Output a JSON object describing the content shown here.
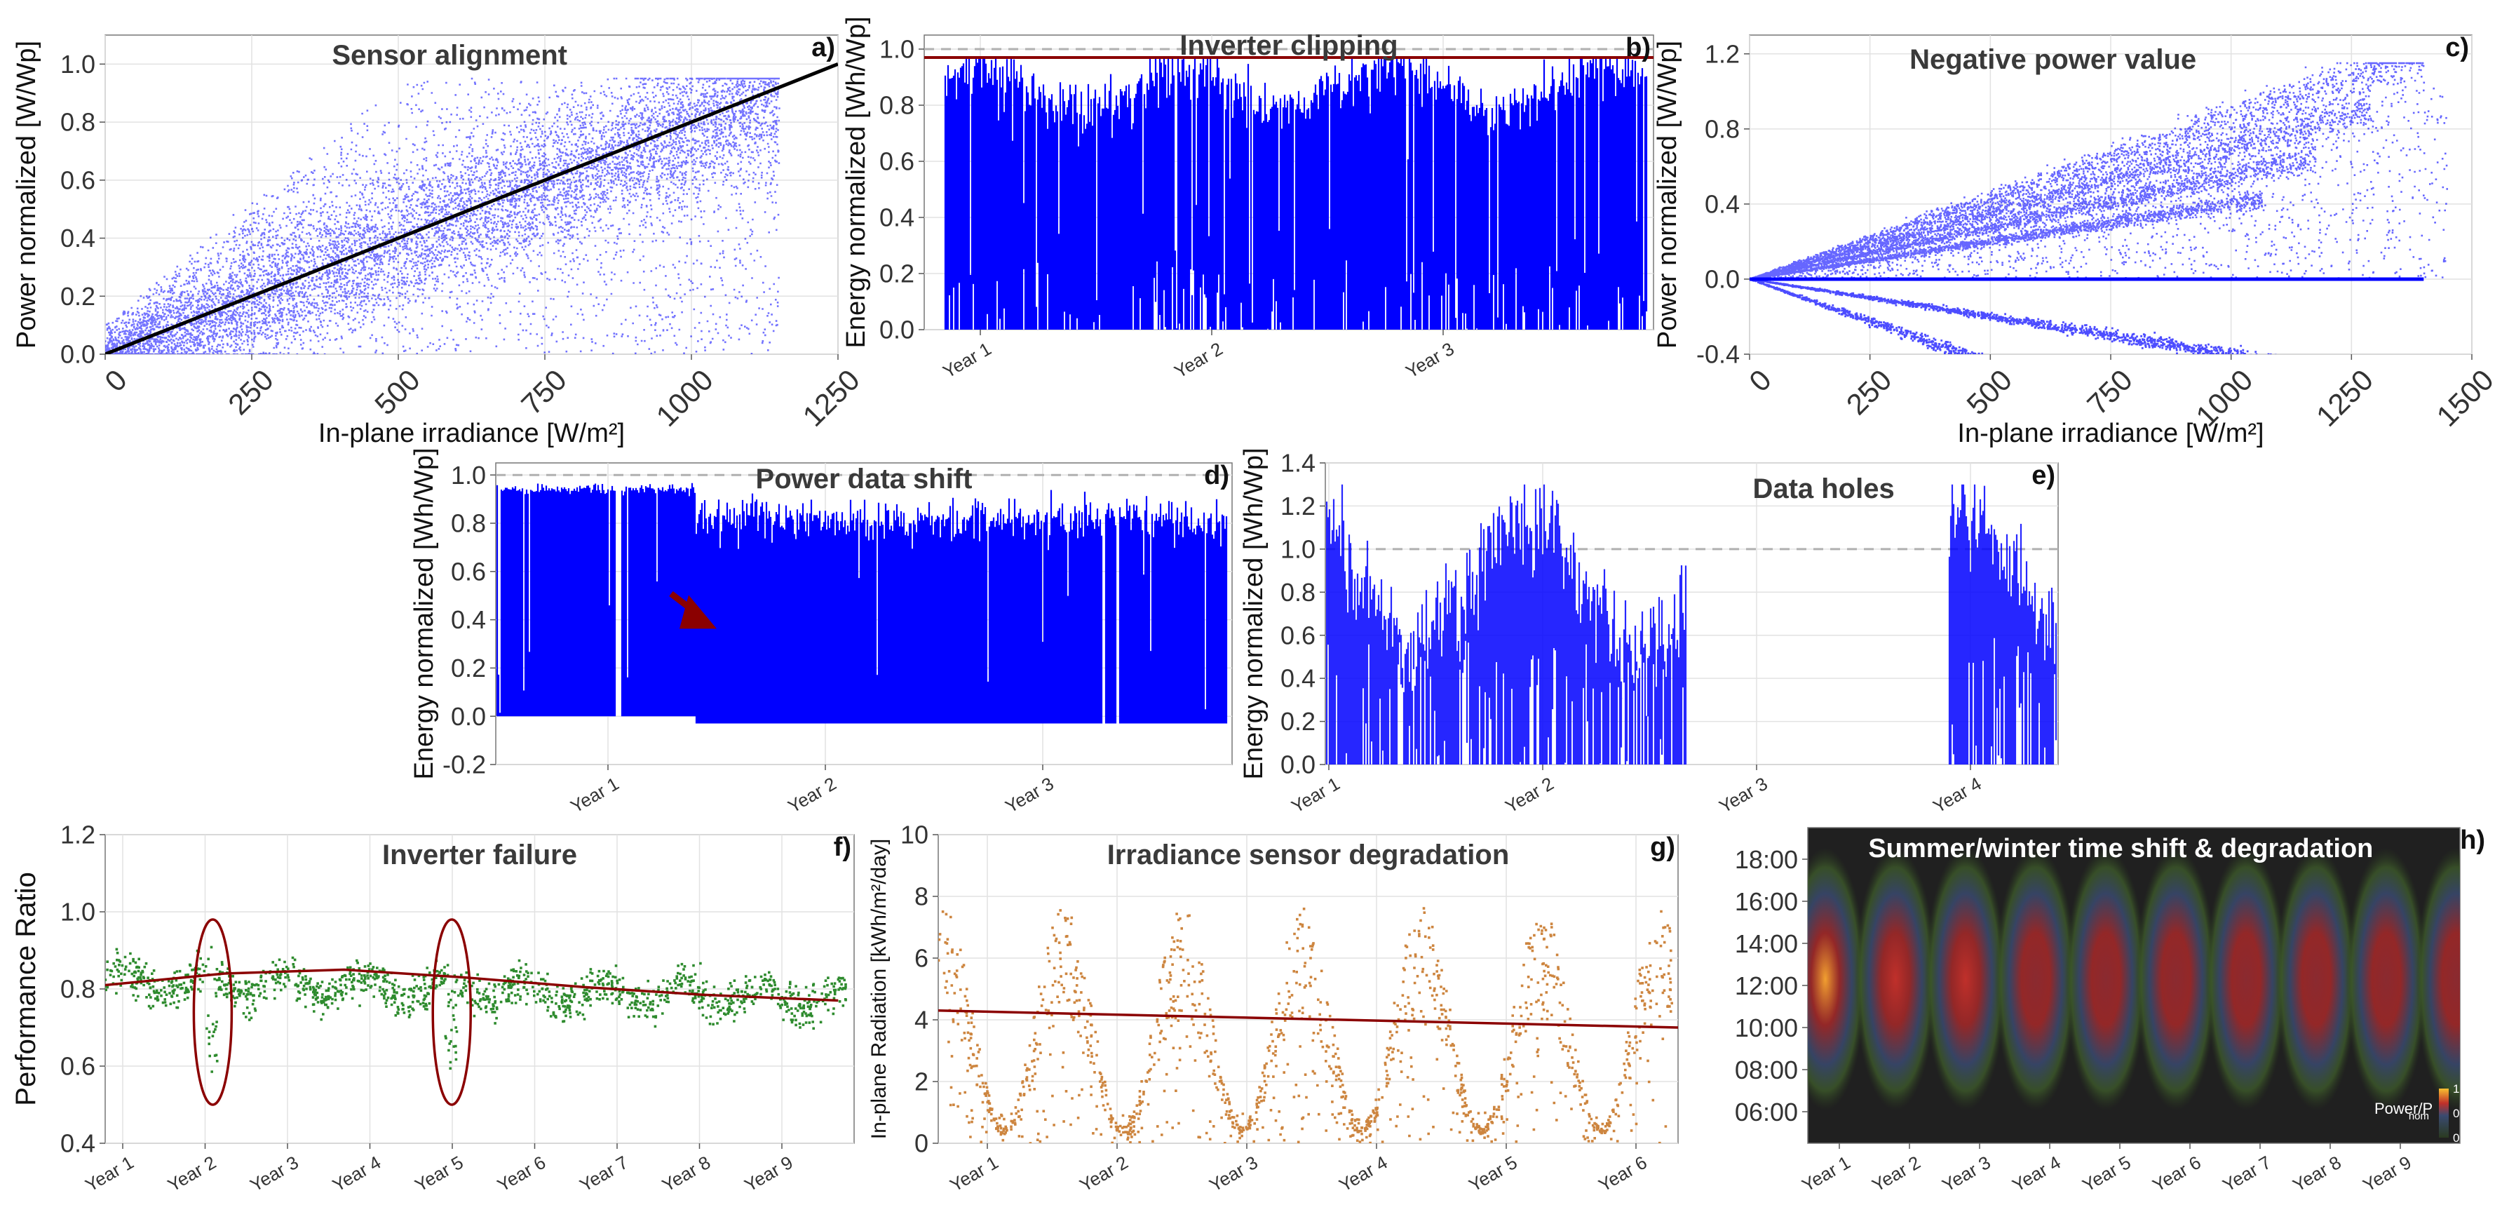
{
  "colors": {
    "scatter_blue": "#0000ff",
    "energy_blue": "#0000ff",
    "trend_red": "#8b0000",
    "pr_green": "#2e8b2e",
    "irr_orange": "#cd853f",
    "reference_gray": "#b0b0b0",
    "black": "#000000",
    "heat_bg": "#202020"
  },
  "chart_data": [
    {
      "type": "scatter",
      "panel": "a)",
      "title": "Sensor alignment",
      "xlabel": "In-plane irradiance [W/m²]",
      "ylabel": "Power normalized [W/Wp]",
      "xlim": [
        0,
        1250
      ],
      "ylim": [
        0,
        1.1
      ],
      "xticks": [
        "0",
        "250",
        "500",
        "750",
        "1000",
        "1250"
      ],
      "yticks": [
        "0.0",
        "0.2",
        "0.4",
        "0.6",
        "0.8",
        "1.0"
      ],
      "reference_line": {
        "x": [
          0,
          1250
        ],
        "y": [
          0,
          1.0
        ]
      },
      "main_trend": {
        "x": [
          0,
          1150
        ],
        "y": [
          0,
          0.9
        ]
      }
    },
    {
      "type": "area",
      "panel": "b)",
      "title": "Inverter clipping",
      "ylabel": "Energy normalized [Wh/Wp]",
      "x_categories": [
        "Year 1",
        "Year 2",
        "Year 3"
      ],
      "ylim": [
        0,
        1.05
      ],
      "yticks": [
        "0.0",
        "0.2",
        "0.4",
        "0.6",
        "0.8",
        "1.0"
      ],
      "reference_level": 1.0,
      "clip_level": 0.97
    },
    {
      "type": "scatter",
      "panel": "c)",
      "title": "Negative power value",
      "xlabel": "In-plane irradiance [W/m²]",
      "ylabel": "Power normalized [W/Wp]",
      "xlim": [
        0,
        1500
      ],
      "ylim": [
        -0.4,
        1.3
      ],
      "xticks": [
        "0",
        "250",
        "500",
        "750",
        "1000",
        "1250",
        "1500"
      ],
      "yticks": [
        "-0.4",
        "0.0",
        "0.4",
        "0.8",
        "1.2"
      ],
      "rays_upper_slopes": [
        0.00085,
        0.0007,
        0.00055,
        0.0004
      ],
      "rays_lower_slopes": [
        -0.0004,
        -0.0009
      ]
    },
    {
      "type": "area",
      "panel": "d)",
      "title": "Power data shift",
      "ylabel": "Energy normalized [Wh/Wp]",
      "x_categories": [
        "Year 1",
        "Year 2",
        "Year 3"
      ],
      "ylim": [
        -0.2,
        1.05
      ],
      "yticks": [
        "-0.2",
        "0.0",
        "0.2",
        "0.4",
        "0.6",
        "0.8",
        "1.0"
      ],
      "reference_level": 1.0,
      "baseline_before": 0.0,
      "baseline_after": -0.03
    },
    {
      "type": "area",
      "panel": "e)",
      "title": "Data holes",
      "ylabel": "Energy normalized [Wh/Wp]",
      "x_categories": [
        "Year 1",
        "Year 2",
        "Year 3",
        "Year 4"
      ],
      "ylim": [
        0,
        1.4
      ],
      "yticks": [
        "0.0",
        "0.2",
        "0.4",
        "0.6",
        "0.8",
        "1.0",
        "1.2",
        "1.4"
      ],
      "reference_level": 1.0,
      "data_gap_years": [
        1.78,
        3.95
      ]
    },
    {
      "type": "scatter",
      "panel": "f)",
      "title": "Inverter failure",
      "ylabel": "Performance Ratio",
      "x_categories": [
        "Year 1",
        "Year 2",
        "Year 3",
        "Year 4",
        "Year 5",
        "Year 6",
        "Year 7",
        "Year 8",
        "Year 9"
      ],
      "ylim": [
        0.4,
        1.2
      ],
      "yticks": [
        "0.4",
        "0.6",
        "0.8",
        "1.0",
        "1.2"
      ],
      "trend": {
        "x": [
          0,
          1.5,
          3,
          4.5,
          6,
          7.5,
          9.2
        ],
        "y": [
          0.81,
          0.84,
          0.85,
          0.83,
          0.805,
          0.785,
          0.77
        ]
      },
      "failure_years": [
        1.35,
        4.35
      ]
    },
    {
      "type": "scatter",
      "panel": "g)",
      "title": "Irradiance sensor degradation",
      "ylabel": "In-plane Radiation [kWh/m²/day]",
      "x_categories": [
        "Year 1",
        "Year 2",
        "Year 3",
        "Year 4",
        "Year 5",
        "Year 6"
      ],
      "ylim": [
        0,
        10
      ],
      "yticks": [
        "0",
        "2",
        "4",
        "6",
        "8",
        "10"
      ],
      "trend": {
        "x": [
          0,
          6.2
        ],
        "y": [
          4.3,
          3.75
        ]
      }
    },
    {
      "type": "heatmap",
      "panel": "h)",
      "title": "Summer/winter time shift & degradation",
      "x_categories": [
        "Year 1",
        "Year 2",
        "Year 3",
        "Year 4",
        "Year 5",
        "Year 6",
        "Year 7",
        "Year 8",
        "Year 9"
      ],
      "yticks": [
        "06:00",
        "08:00",
        "10:00",
        "12:00",
        "14:00",
        "16:00",
        "18:00"
      ],
      "colorbar": {
        "label_main": "Power/P",
        "label_sub": "nom",
        "ticks": [
          "0.00",
          "0.50",
          "1.00"
        ]
      },
      "peak_intensity": [
        1.0,
        0.85,
        0.75,
        0.68,
        0.62,
        0.58,
        0.55,
        0.52,
        0.5,
        0.48
      ]
    }
  ]
}
